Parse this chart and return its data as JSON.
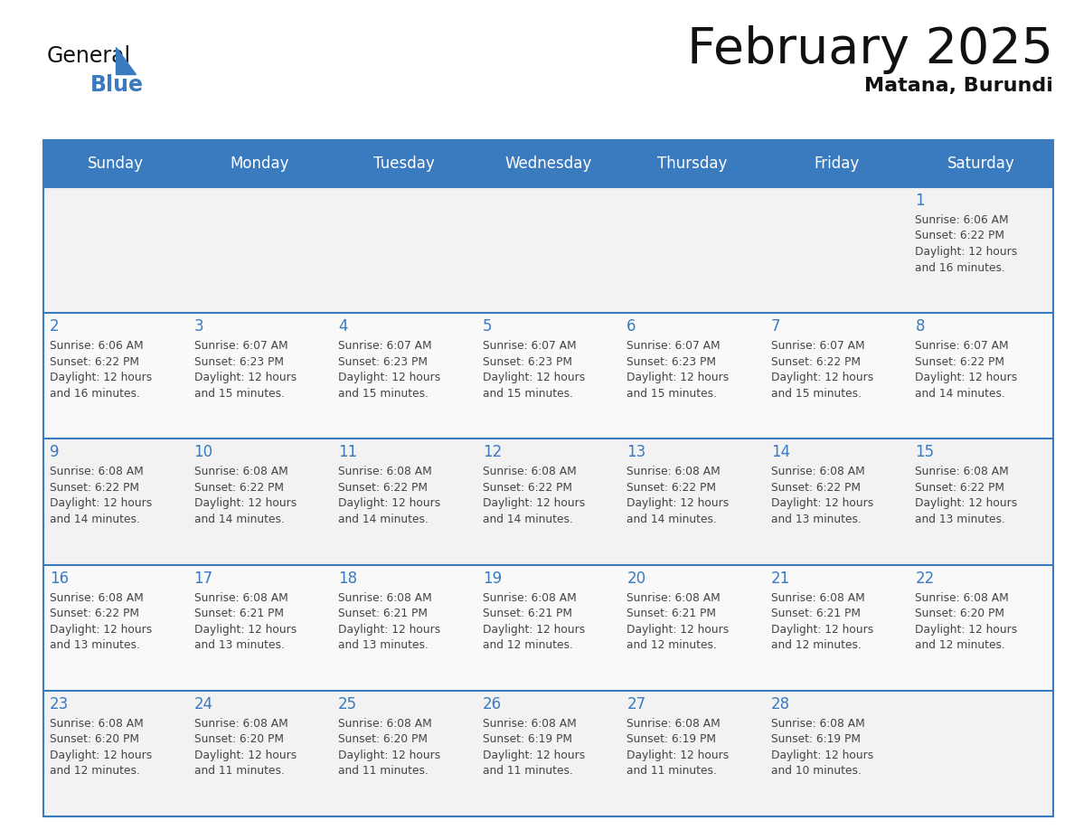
{
  "title": "February 2025",
  "subtitle": "Matana, Burundi",
  "days_of_week": [
    "Sunday",
    "Monday",
    "Tuesday",
    "Wednesday",
    "Thursday",
    "Friday",
    "Saturday"
  ],
  "header_bg_color": "#3a7abf",
  "header_text_color": "#ffffff",
  "cell_bg_odd": "#f2f2f2",
  "cell_bg_even": "#f9f9f9",
  "day_number_color": "#3a7abf",
  "text_color": "#444444",
  "border_color": "#3a7abf",
  "title_color": "#111111",
  "subtitle_color": "#111111",
  "logo_general_color": "#111111",
  "logo_blue_color": "#3a7abf",
  "logo_triangle_color": "#3a7abf",
  "calendar_data": [
    [
      {
        "day": null,
        "info": null
      },
      {
        "day": null,
        "info": null
      },
      {
        "day": null,
        "info": null
      },
      {
        "day": null,
        "info": null
      },
      {
        "day": null,
        "info": null
      },
      {
        "day": null,
        "info": null
      },
      {
        "day": 1,
        "info": "Sunrise: 6:06 AM\nSunset: 6:22 PM\nDaylight: 12 hours\nand 16 minutes."
      }
    ],
    [
      {
        "day": 2,
        "info": "Sunrise: 6:06 AM\nSunset: 6:22 PM\nDaylight: 12 hours\nand 16 minutes."
      },
      {
        "day": 3,
        "info": "Sunrise: 6:07 AM\nSunset: 6:23 PM\nDaylight: 12 hours\nand 15 minutes."
      },
      {
        "day": 4,
        "info": "Sunrise: 6:07 AM\nSunset: 6:23 PM\nDaylight: 12 hours\nand 15 minutes."
      },
      {
        "day": 5,
        "info": "Sunrise: 6:07 AM\nSunset: 6:23 PM\nDaylight: 12 hours\nand 15 minutes."
      },
      {
        "day": 6,
        "info": "Sunrise: 6:07 AM\nSunset: 6:23 PM\nDaylight: 12 hours\nand 15 minutes."
      },
      {
        "day": 7,
        "info": "Sunrise: 6:07 AM\nSunset: 6:22 PM\nDaylight: 12 hours\nand 15 minutes."
      },
      {
        "day": 8,
        "info": "Sunrise: 6:07 AM\nSunset: 6:22 PM\nDaylight: 12 hours\nand 14 minutes."
      }
    ],
    [
      {
        "day": 9,
        "info": "Sunrise: 6:08 AM\nSunset: 6:22 PM\nDaylight: 12 hours\nand 14 minutes."
      },
      {
        "day": 10,
        "info": "Sunrise: 6:08 AM\nSunset: 6:22 PM\nDaylight: 12 hours\nand 14 minutes."
      },
      {
        "day": 11,
        "info": "Sunrise: 6:08 AM\nSunset: 6:22 PM\nDaylight: 12 hours\nand 14 minutes."
      },
      {
        "day": 12,
        "info": "Sunrise: 6:08 AM\nSunset: 6:22 PM\nDaylight: 12 hours\nand 14 minutes."
      },
      {
        "day": 13,
        "info": "Sunrise: 6:08 AM\nSunset: 6:22 PM\nDaylight: 12 hours\nand 14 minutes."
      },
      {
        "day": 14,
        "info": "Sunrise: 6:08 AM\nSunset: 6:22 PM\nDaylight: 12 hours\nand 13 minutes."
      },
      {
        "day": 15,
        "info": "Sunrise: 6:08 AM\nSunset: 6:22 PM\nDaylight: 12 hours\nand 13 minutes."
      }
    ],
    [
      {
        "day": 16,
        "info": "Sunrise: 6:08 AM\nSunset: 6:22 PM\nDaylight: 12 hours\nand 13 minutes."
      },
      {
        "day": 17,
        "info": "Sunrise: 6:08 AM\nSunset: 6:21 PM\nDaylight: 12 hours\nand 13 minutes."
      },
      {
        "day": 18,
        "info": "Sunrise: 6:08 AM\nSunset: 6:21 PM\nDaylight: 12 hours\nand 13 minutes."
      },
      {
        "day": 19,
        "info": "Sunrise: 6:08 AM\nSunset: 6:21 PM\nDaylight: 12 hours\nand 12 minutes."
      },
      {
        "day": 20,
        "info": "Sunrise: 6:08 AM\nSunset: 6:21 PM\nDaylight: 12 hours\nand 12 minutes."
      },
      {
        "day": 21,
        "info": "Sunrise: 6:08 AM\nSunset: 6:21 PM\nDaylight: 12 hours\nand 12 minutes."
      },
      {
        "day": 22,
        "info": "Sunrise: 6:08 AM\nSunset: 6:20 PM\nDaylight: 12 hours\nand 12 minutes."
      }
    ],
    [
      {
        "day": 23,
        "info": "Sunrise: 6:08 AM\nSunset: 6:20 PM\nDaylight: 12 hours\nand 12 minutes."
      },
      {
        "day": 24,
        "info": "Sunrise: 6:08 AM\nSunset: 6:20 PM\nDaylight: 12 hours\nand 11 minutes."
      },
      {
        "day": 25,
        "info": "Sunrise: 6:08 AM\nSunset: 6:20 PM\nDaylight: 12 hours\nand 11 minutes."
      },
      {
        "day": 26,
        "info": "Sunrise: 6:08 AM\nSunset: 6:19 PM\nDaylight: 12 hours\nand 11 minutes."
      },
      {
        "day": 27,
        "info": "Sunrise: 6:08 AM\nSunset: 6:19 PM\nDaylight: 12 hours\nand 11 minutes."
      },
      {
        "day": 28,
        "info": "Sunrise: 6:08 AM\nSunset: 6:19 PM\nDaylight: 12 hours\nand 10 minutes."
      },
      {
        "day": null,
        "info": null
      }
    ]
  ]
}
